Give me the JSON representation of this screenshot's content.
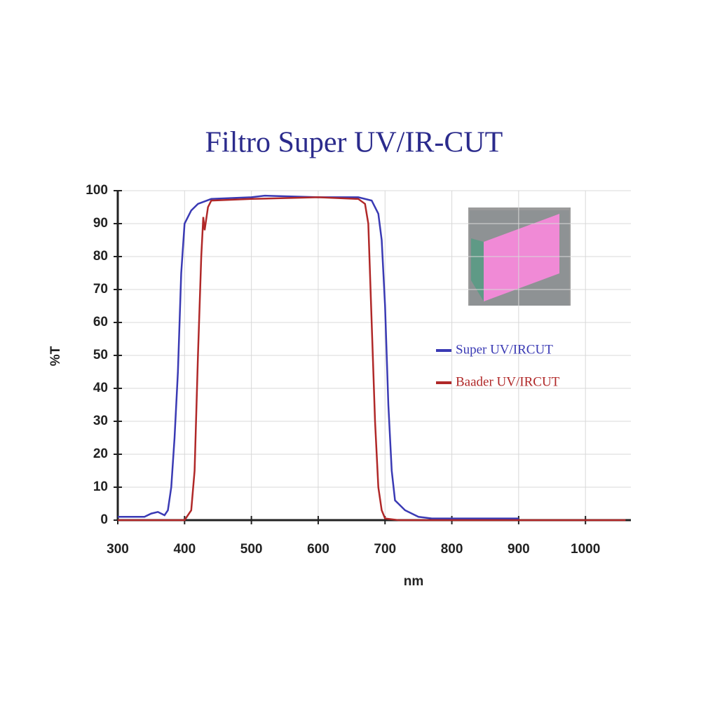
{
  "chart_data": {
    "type": "line",
    "title": "Filtro Super UV/IR-CUT",
    "x_label": "nm",
    "y_label": "%T",
    "xlim": [
      300,
      1068
    ],
    "ylim": [
      0,
      100
    ],
    "xticks": [
      300,
      400,
      500,
      600,
      700,
      800,
      900,
      1000
    ],
    "yticks": [
      0,
      10,
      20,
      30,
      40,
      50,
      60,
      70,
      80,
      90,
      100
    ],
    "grid": true,
    "legend": "right",
    "series": [
      {
        "name": "Super UV/IRCUT",
        "color": "#3a3ab4",
        "x": [
          300,
          340,
          350,
          360,
          370,
          375,
          380,
          385,
          390,
          395,
          400,
          410,
          420,
          440,
          500,
          520,
          600,
          660,
          680,
          690,
          695,
          700,
          705,
          710,
          715,
          730,
          750,
          770,
          900
        ],
        "values": [
          1,
          1,
          2,
          2.5,
          1.5,
          3,
          10,
          25,
          45,
          75,
          90,
          94,
          96,
          97.5,
          98,
          98.5,
          98,
          98,
          97,
          93,
          85,
          65,
          35,
          15,
          6,
          3,
          1,
          0.5,
          0.5
        ]
      },
      {
        "name": "Baader UV/IRCUT",
        "color": "#b02828",
        "x": [
          300,
          400,
          410,
          415,
          420,
          425,
          428,
          430,
          435,
          440,
          500,
          600,
          660,
          670,
          675,
          680,
          685,
          690,
          695,
          700,
          720,
          1060
        ],
        "values": [
          0,
          0,
          3,
          15,
          50,
          80,
          92,
          88,
          95,
          97,
          97.5,
          98,
          97.5,
          96,
          90,
          60,
          30,
          10,
          3,
          0.5,
          0,
          0
        ]
      }
    ]
  }
}
